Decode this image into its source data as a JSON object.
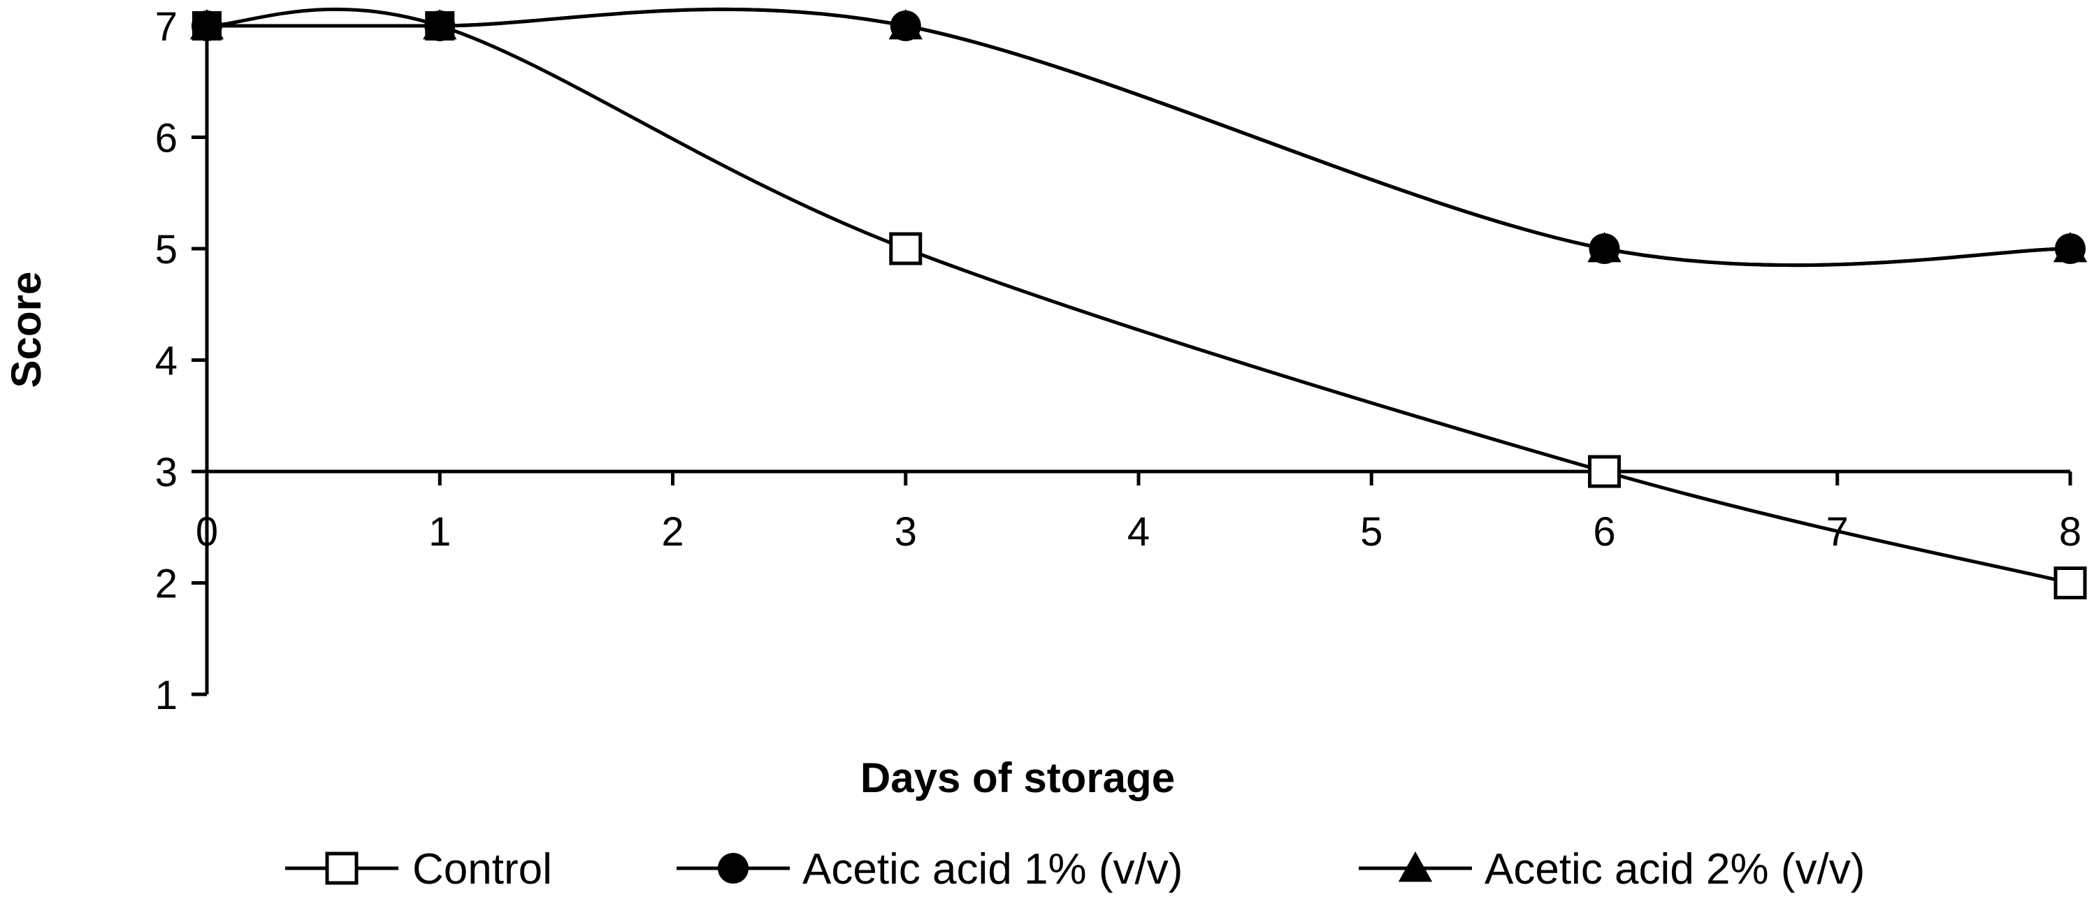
{
  "chart_data": {
    "type": "line",
    "xlabel": "Days of storage",
    "ylabel": "Score",
    "x_ticks": [
      "0",
      "1",
      "2",
      "3",
      "4",
      "5",
      "6",
      "7",
      "8"
    ],
    "y_ticks": [
      "1",
      "2",
      "3",
      "4",
      "5",
      "6",
      "7"
    ],
    "xlim": [
      0,
      8
    ],
    "ylim": [
      1,
      7
    ],
    "x_axis_crosses_y_at": 3,
    "grid": false,
    "legend_position": "bottom",
    "series": [
      {
        "name": "Control",
        "marker": "open-square",
        "smooth": true,
        "x": [
          0,
          1,
          3,
          6,
          8
        ],
        "y": [
          7,
          7,
          5,
          3,
          2
        ]
      },
      {
        "name": "Acetic acid 1% (v/v)",
        "marker": "filled-circle",
        "smooth": true,
        "x": [
          0,
          1,
          3,
          6,
          8
        ],
        "y": [
          7,
          7,
          7,
          5,
          5
        ]
      },
      {
        "name": "Acetic acid 2% (v/v)",
        "marker": "filled-triangle",
        "smooth": true,
        "x": [
          0,
          1,
          3,
          6,
          8
        ],
        "y": [
          7,
          7,
          7,
          5,
          5
        ]
      }
    ],
    "line_color": "#000000"
  }
}
